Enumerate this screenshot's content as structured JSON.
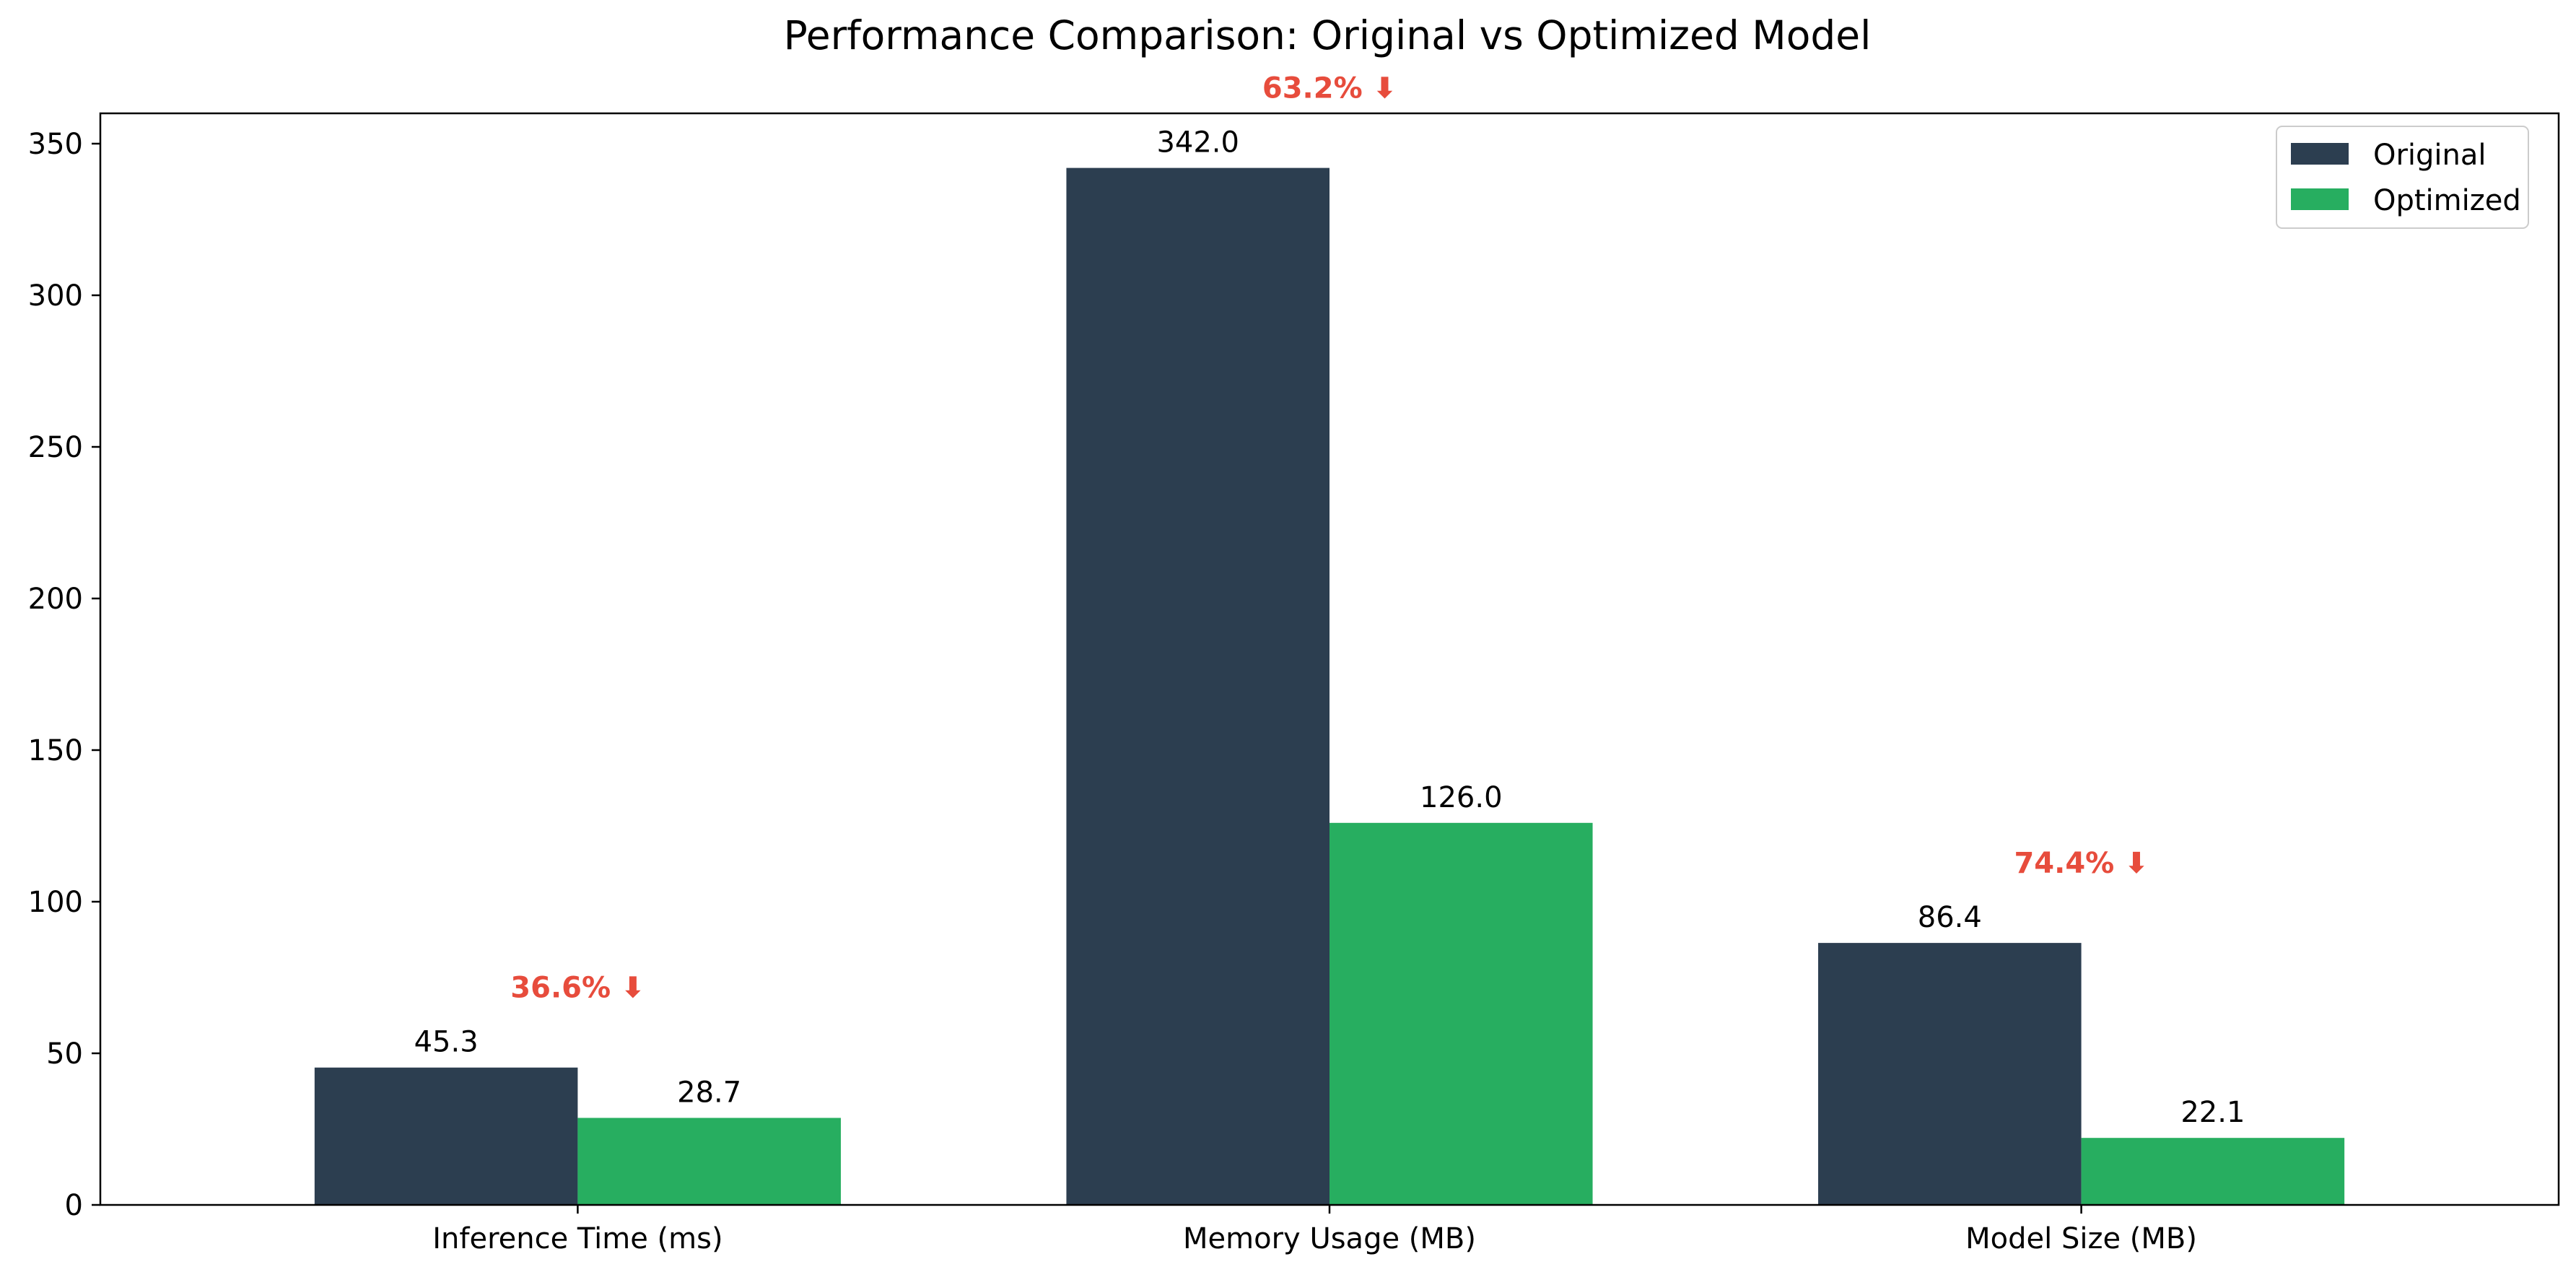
{
  "chart_data": {
    "type": "bar",
    "title": "Performance Comparison: Original vs Optimized Model",
    "xlabel": "",
    "ylabel": "",
    "categories": [
      "Inference Time (ms)",
      "Memory Usage (MB)",
      "Model Size (MB)"
    ],
    "series": [
      {
        "name": "Original",
        "values": [
          45.3,
          342.0,
          86.4
        ],
        "labels": [
          "45.3",
          "342.0",
          "86.4"
        ],
        "color": "#2c3e50"
      },
      {
        "name": "Optimized",
        "values": [
          28.7,
          126.0,
          22.1
        ],
        "labels": [
          "28.7",
          "126.0",
          "22.1"
        ],
        "color": "#27ae60"
      }
    ],
    "annotations": [
      "36.6% ⬇",
      "63.2% ⬇",
      "74.4% ⬇"
    ],
    "annotation_color": "#e74c3c",
    "ylim": [
      0,
      360
    ],
    "yticks": [
      0,
      50,
      100,
      150,
      200,
      250,
      300,
      350
    ],
    "grid": false,
    "legend_position": "top-right"
  }
}
